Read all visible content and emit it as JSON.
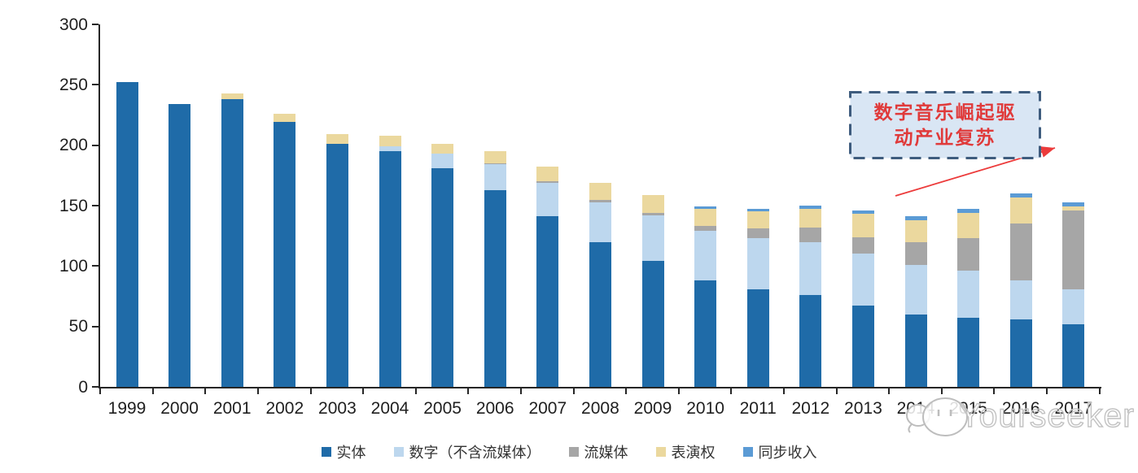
{
  "chart_data": {
    "type": "bar",
    "stacked": true,
    "categories": [
      "1999",
      "2000",
      "2001",
      "2002",
      "2003",
      "2004",
      "2005",
      "2006",
      "2007",
      "2008",
      "2009",
      "2010",
      "2011",
      "2012",
      "2013",
      "2014",
      "2015",
      "2016",
      "2017"
    ],
    "series": [
      {
        "name": "实体",
        "color": "#1f6ba8",
        "values": [
          252,
          234,
          238,
          219,
          201,
          195,
          181,
          163,
          141,
          120,
          104,
          88,
          81,
          76,
          67,
          60,
          57,
          56,
          52
        ]
      },
      {
        "name": "数字（不含流媒体）",
        "color": "#bdd7ee",
        "values": [
          0,
          0,
          0,
          0,
          0,
          4,
          12,
          21,
          28,
          33,
          38,
          41,
          42,
          44,
          43,
          41,
          39,
          32,
          29
        ]
      },
      {
        "name": "流媒体",
        "color": "#a6a6a6",
        "values": [
          0,
          0,
          0,
          0,
          0,
          0,
          0,
          1,
          1,
          2,
          2,
          4,
          8,
          12,
          14,
          19,
          27,
          47,
          65
        ]
      },
      {
        "name": "表演权",
        "color": "#ebd89e",
        "values": [
          0,
          0,
          5,
          7,
          8,
          9,
          8,
          10,
          12,
          14,
          15,
          14,
          14,
          15,
          19,
          18,
          21,
          22,
          3
        ]
      },
      {
        "name": "同步收入",
        "color": "#5b9bd5",
        "values": [
          0,
          0,
          0,
          0,
          0,
          0,
          0,
          0,
          0,
          0,
          0,
          2,
          2,
          3,
          3,
          3,
          3,
          3,
          4
        ]
      }
    ],
    "totals": [
      252,
      234,
      243,
      226,
      209,
      208,
      201,
      195,
      182,
      169,
      159,
      149,
      147,
      150,
      146,
      141,
      147,
      160,
      153
    ],
    "ylim": [
      0,
      300
    ],
    "yticks": [
      0,
      50,
      100,
      150,
      200,
      250,
      300
    ],
    "grid": false,
    "legend_position": "bottom",
    "axis_color": "#262626",
    "label_color": "#1f1f1f"
  },
  "annotation": {
    "line1": "数字音乐崛起驱",
    "line2": "动产业复苏",
    "text_color": "#e03a3a",
    "fill_color": "#d9e6f4",
    "border_color": "#3e5c7e",
    "arrow_color": "#ec3b3b"
  },
  "watermark": {
    "text": "Yourseeker",
    "logo": "chat-bubble-cat-icon"
  }
}
